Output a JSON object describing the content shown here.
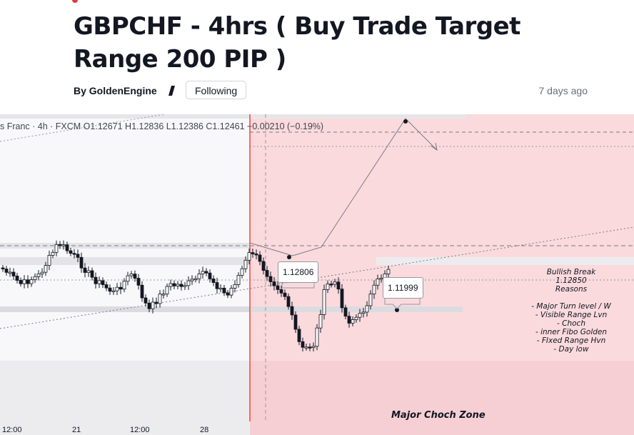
{
  "article": {
    "title": "GBPCHF - 4hrs ( Buy Trade Target Range 200 PIP )",
    "author_prefix": "By",
    "author": "GoldenEngine",
    "follow_label": "Following",
    "published": "7 days ago"
  },
  "chart": {
    "legend": "s Franc · 4h · FXCM  O1.12671  H1.12836  L1.12386  C1.12461  −0.00210 (−0.19%)",
    "label_1": "1.12806",
    "label_2": "1.11999",
    "annotation": {
      "title": "Bullish Break",
      "price": "1.12850",
      "reasons_header": "Reasons",
      "reasons": [
        "- Major Turn level / W",
        "- Visible Range Lvn",
        "- Choch",
        "- inner Fibo Golden",
        "- FIxed Range Hvn",
        "- Day low"
      ]
    },
    "zone_label": "Major Choch Zone",
    "x_axis": [
      "12:00",
      "21",
      "12:00",
      "28"
    ],
    "colors": {
      "zone_fill": "#fadadd",
      "zone_line": "#f44336",
      "bull": "#ffffff",
      "bear": "#131722"
    }
  }
}
